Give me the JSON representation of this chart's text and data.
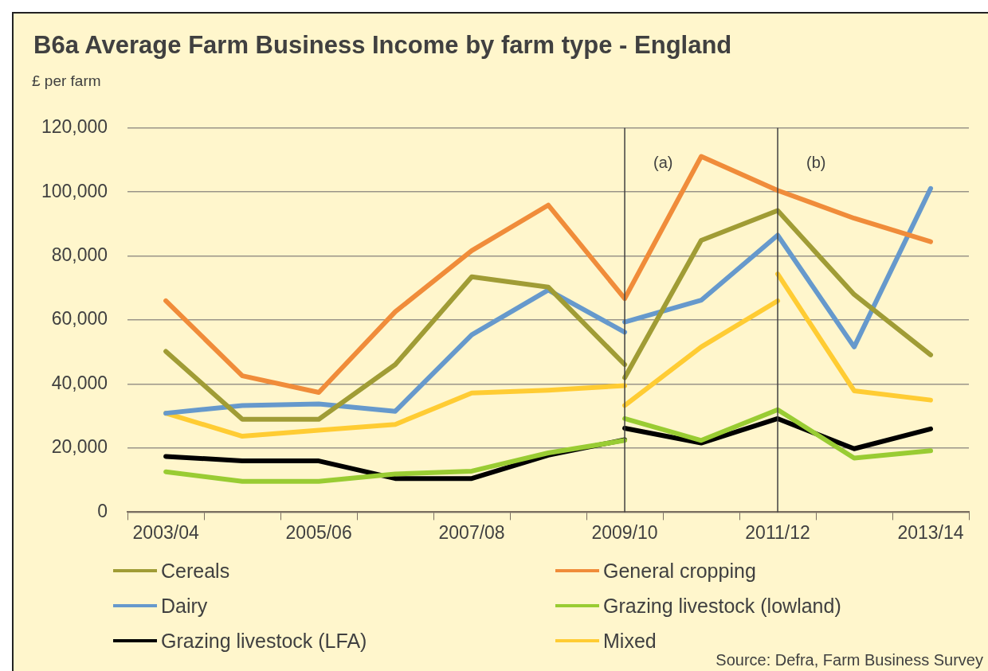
{
  "chart_data": {
    "type": "line",
    "title": "B6a Average Farm Business Income by farm type - England",
    "ylabel": "£ per farm",
    "categories": [
      "2003/04",
      null,
      "2005/06",
      null,
      "2007/08",
      null,
      "2009/10",
      null,
      "2011/12",
      null,
      "2013/14"
    ],
    "ylim": [
      0,
      120000
    ],
    "yticks": [
      {
        "value": 0,
        "label": "0"
      },
      {
        "value": 20000,
        "label": "20,000"
      },
      {
        "value": 40000,
        "label": "40,000"
      },
      {
        "value": 60000,
        "label": "60,000"
      },
      {
        "value": 80000,
        "label": "80,000"
      },
      {
        "value": 100000,
        "label": "100,000"
      },
      {
        "value": 120000,
        "label": "120,000"
      }
    ],
    "series": [
      {
        "name": "Cereals",
        "color": "#a09c35",
        "values": [
          50200,
          29000,
          29000,
          46100,
          73500,
          70300,
          46100,
          null,
          null,
          null,
          null
        ]
      },
      {
        "name": "General cropping",
        "color": "#f08c3a",
        "values": [
          66000,
          42600,
          37400,
          62600,
          81700,
          95900,
          66700,
          111100,
          100500,
          91800,
          84500
        ]
      },
      {
        "name": "Dairy",
        "color": "#6699cc",
        "values": [
          30900,
          33300,
          33800,
          31500,
          55400,
          69400,
          56200,
          null,
          null,
          null,
          null
        ]
      },
      {
        "name": "Grazing livestock (lowland)",
        "color": "#99cc33",
        "values": [
          12600,
          9600,
          9600,
          11900,
          12800,
          18500,
          22400,
          null,
          null,
          null,
          null
        ]
      },
      {
        "name": "Grazing livestock (LFA)",
        "color": "#000000",
        "values": [
          17400,
          16000,
          16000,
          10500,
          10500,
          17800,
          22600,
          null,
          null,
          null,
          null
        ]
      },
      {
        "name": "Mixed",
        "color": "#ffcc33",
        "values": [
          30900,
          23700,
          25600,
          27400,
          37200,
          38100,
          39500,
          null,
          null,
          null,
          null
        ]
      },
      {
        "color": "#a09c35",
        "values": [
          null,
          null,
          null,
          null,
          null,
          null,
          42000,
          84900,
          94200,
          68000,
          49100
        ]
      },
      {
        "color": "#6699cc",
        "values": [
          null,
          null,
          null,
          null,
          null,
          null,
          59400,
          66200,
          86500,
          51600,
          101100
        ]
      },
      {
        "color": "#99cc33",
        "values": [
          null,
          null,
          null,
          null,
          null,
          null,
          29200,
          22400,
          32000,
          16900,
          19200
        ]
      },
      {
        "color": "#000000",
        "values": [
          null,
          null,
          null,
          null,
          null,
          null,
          26200,
          21600,
          29200,
          19800,
          26000
        ]
      },
      {
        "color": "#ffcc33",
        "values": [
          null,
          null,
          null,
          null,
          null,
          null,
          33300,
          51600,
          66000,
          null,
          null
        ]
      },
      {
        "color": "#ffcc33",
        "values": [
          null,
          null,
          null,
          null,
          null,
          null,
          null,
          null,
          74400,
          37900,
          35000
        ]
      }
    ],
    "ref_lines": [
      {
        "axis": "x",
        "value": "2009/10",
        "label": "(a)",
        "color": "#404040"
      },
      {
        "axis": "x",
        "value": "2011/12",
        "label": "(b)",
        "color": "#404040"
      }
    ],
    "annotations": [
      "Source: Defra, Farm Business Survey"
    ],
    "grid": "y",
    "legend": "bottom",
    "marker": "none",
    "line_style": "solid"
  }
}
